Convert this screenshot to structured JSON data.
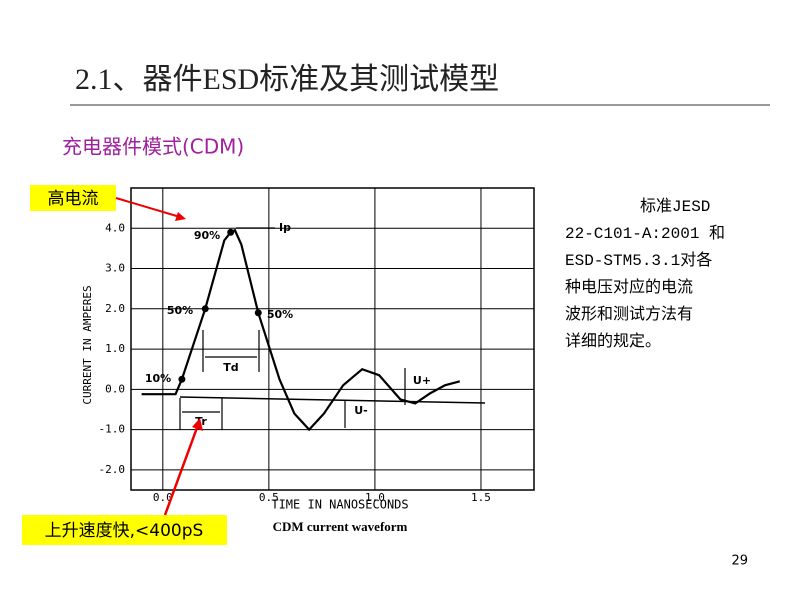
{
  "slide": {
    "title": "2.1、器件ESD标准及其测试模型",
    "subtitle": "充电器件模式(CDM)",
    "callout_current": "高电流",
    "callout_rise": "上升速度快,<400pS",
    "description": [
      "标准JESD",
      "22-C101-A:2001 和",
      "ESD-STM5.3.1对各",
      "种电压对应的电流",
      "波形和测试方法有",
      "详细的规定。"
    ],
    "page_number": "29"
  },
  "chart_data": {
    "type": "line",
    "caption": "CDM current waveform",
    "x_label": "TIME IN NANOSECONDS",
    "y_label": "CURRENT IN AMPERES",
    "x": [
      -0.1,
      0.06,
      0.09,
      0.2,
      0.29,
      0.32,
      0.34,
      0.37,
      0.45,
      0.55,
      0.62,
      0.69,
      0.76,
      0.85,
      0.94,
      1.02,
      1.12,
      1.19,
      1.26,
      1.33,
      1.4
    ],
    "values": [
      -0.12,
      -0.12,
      0.25,
      2.0,
      3.7,
      3.9,
      3.95,
      3.6,
      1.9,
      0.25,
      -0.6,
      -1.0,
      -0.6,
      0.1,
      0.5,
      0.35,
      -0.25,
      -0.35,
      -0.1,
      0.1,
      0.2
    ],
    "color": "#000000",
    "xlim": [
      -0.15,
      1.75
    ],
    "ylim": [
      -2.5,
      5
    ],
    "xticks": [
      {
        "value": 0,
        "label": "0.0"
      },
      0.5,
      {
        "value": 1,
        "label": "1.0"
      },
      1.5
    ],
    "yticks": [
      {
        "value": -2,
        "label": "-2.0"
      },
      {
        "value": -1,
        "label": "-1.0"
      },
      {
        "value": 0,
        "label": "0.0"
      },
      {
        "value": 1,
        "label": "1.0"
      },
      {
        "value": 2,
        "label": "2.0"
      },
      {
        "value": 3,
        "label": "3.0"
      },
      {
        "value": 4,
        "label": "4.0"
      }
    ],
    "grid": true,
    "annotations": [
      "Ip",
      "90%",
      "50%",
      "50%",
      "10%",
      "Td",
      "Tr",
      "U+",
      "U-"
    ]
  }
}
